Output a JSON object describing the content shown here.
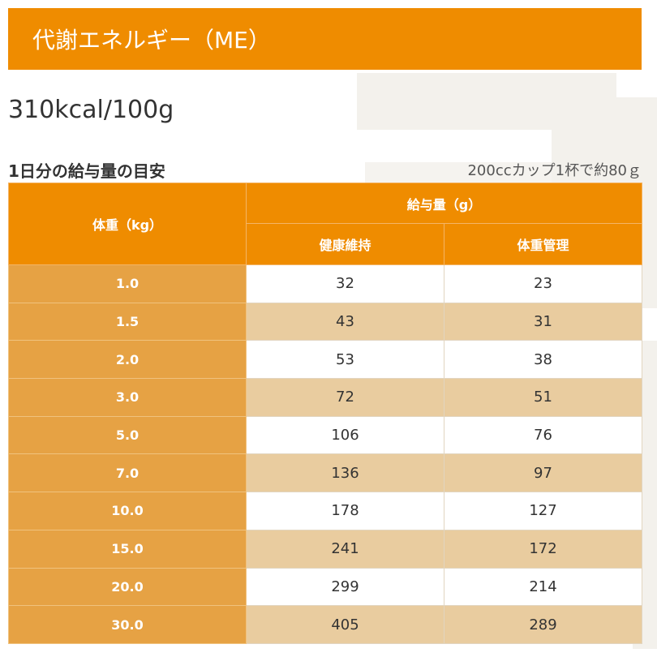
{
  "header": {
    "title": "代謝エネルギー（ME）"
  },
  "calorie": {
    "text": "310kcal/100g"
  },
  "feeding": {
    "title": "1日分の給与量の目安",
    "note": "200ccカップ1杯で約80ｇ"
  },
  "table": {
    "weight_header": "体重（kg）",
    "group_header": "給与量（g）",
    "sub_headers": [
      "健康維持",
      "体重管理"
    ],
    "rows": [
      {
        "weight": "1.0",
        "maintain": "32",
        "manage": "23"
      },
      {
        "weight": "1.5",
        "maintain": "43",
        "manage": "31"
      },
      {
        "weight": "2.0",
        "maintain": "53",
        "manage": "38"
      },
      {
        "weight": "3.0",
        "maintain": "72",
        "manage": "51"
      },
      {
        "weight": "5.0",
        "maintain": "106",
        "manage": "76"
      },
      {
        "weight": "7.0",
        "maintain": "136",
        "manage": "97"
      },
      {
        "weight": "10.0",
        "maintain": "178",
        "manage": "127"
      },
      {
        "weight": "15.0",
        "maintain": "241",
        "manage": "172"
      },
      {
        "weight": "20.0",
        "maintain": "299",
        "manage": "214"
      },
      {
        "weight": "30.0",
        "maintain": "405",
        "manage": "289"
      }
    ]
  },
  "colors": {
    "accent": "#ef8c00",
    "weight_cell": "#e6a244",
    "stripe": "#e9cc9f",
    "watermark": "#f3f1ec"
  }
}
